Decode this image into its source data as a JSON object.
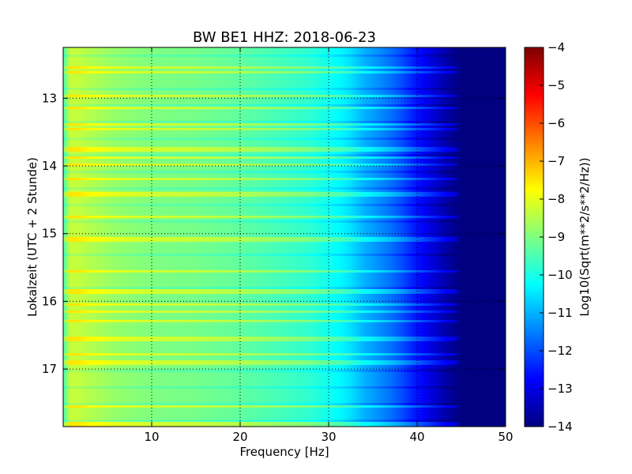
{
  "chart_data": {
    "type": "heatmap",
    "title": "BW BE1 HHZ: 2018-06-23",
    "xlabel": "Frequency [Hz]",
    "ylabel": "Lokalzeit (UTC + 2 Stunde)",
    "colorbar_label": "Log10(Sqrt(m**2/s**2/Hz))",
    "xlim": [
      0,
      50
    ],
    "ylim": [
      12.25,
      17.85
    ],
    "x_ticks": [
      10,
      20,
      30,
      40,
      50
    ],
    "y_ticks": [
      13,
      14,
      15,
      16,
      17
    ],
    "clim": [
      -14,
      -4
    ],
    "colorbar_ticks": [
      -14,
      -13,
      -12,
      -11,
      -10,
      -9,
      -8,
      -7,
      -6,
      -5,
      -4
    ],
    "colormap": "jet",
    "grid": true,
    "profile": {
      "frequency_hz": [
        0,
        0.5,
        1,
        2,
        4,
        6,
        10,
        15,
        20,
        25,
        28,
        30,
        32,
        33,
        34,
        36,
        38,
        40,
        42,
        43,
        44,
        45,
        46,
        48,
        50
      ],
      "value": [
        -9.5,
        -8.5,
        -8.2,
        -8.4,
        -8.6,
        -8.8,
        -9.0,
        -9.1,
        -9.3,
        -9.6,
        -9.8,
        -10.1,
        -10.4,
        -10.7,
        -11.0,
        -11.4,
        -11.9,
        -12.6,
        -13.2,
        -13.5,
        -13.8,
        -14.0,
        -14.0,
        -14.0,
        -14.0
      ]
    },
    "bright_hours": [
      12.55,
      12.62,
      12.97,
      13.15,
      13.38,
      13.45,
      13.75,
      13.88,
      13.99,
      14.2,
      14.4,
      14.42,
      14.75,
      15.08,
      15.55,
      15.85,
      16.05,
      16.15,
      16.3,
      16.55,
      16.78,
      16.9,
      17.55,
      17.82
    ]
  }
}
